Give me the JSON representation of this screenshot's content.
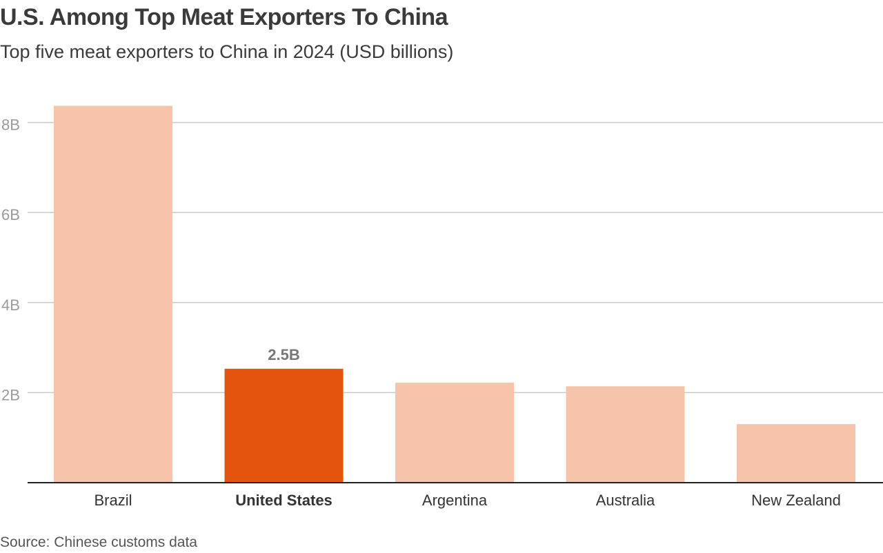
{
  "header": {
    "title": "U.S. Among Top Meat Exporters To China",
    "subtitle": "Top five meat exporters to China in 2024 (USD billions)"
  },
  "footer": {
    "source": "Source: Chinese customs data"
  },
  "colors": {
    "bar": "#f5c4aa",
    "highlight": "#e5540f",
    "gridline": "#c8c8c8",
    "axis": "#222222"
  },
  "chart_data": {
    "type": "bar",
    "title": "U.S. Among Top Meat Exporters To China",
    "subtitle": "Top five meat exporters to China in 2024 (USD billions)",
    "categories": [
      "Brazil",
      "United States",
      "Argentina",
      "Australia",
      "New Zealand"
    ],
    "values": [
      8.37,
      2.53,
      2.22,
      2.14,
      1.3
    ],
    "highlight_index": 1,
    "data_labels": [
      {
        "index": 1,
        "text": "2.5B"
      }
    ],
    "y_ticks": [
      {
        "value": 2,
        "label": "2B"
      },
      {
        "value": 4,
        "label": "4B"
      },
      {
        "value": 6,
        "label": "6B"
      },
      {
        "value": 8,
        "label": "8B"
      }
    ],
    "ylim": [
      0,
      8.4
    ],
    "grid": true,
    "xlabel": "",
    "ylabel": ""
  }
}
